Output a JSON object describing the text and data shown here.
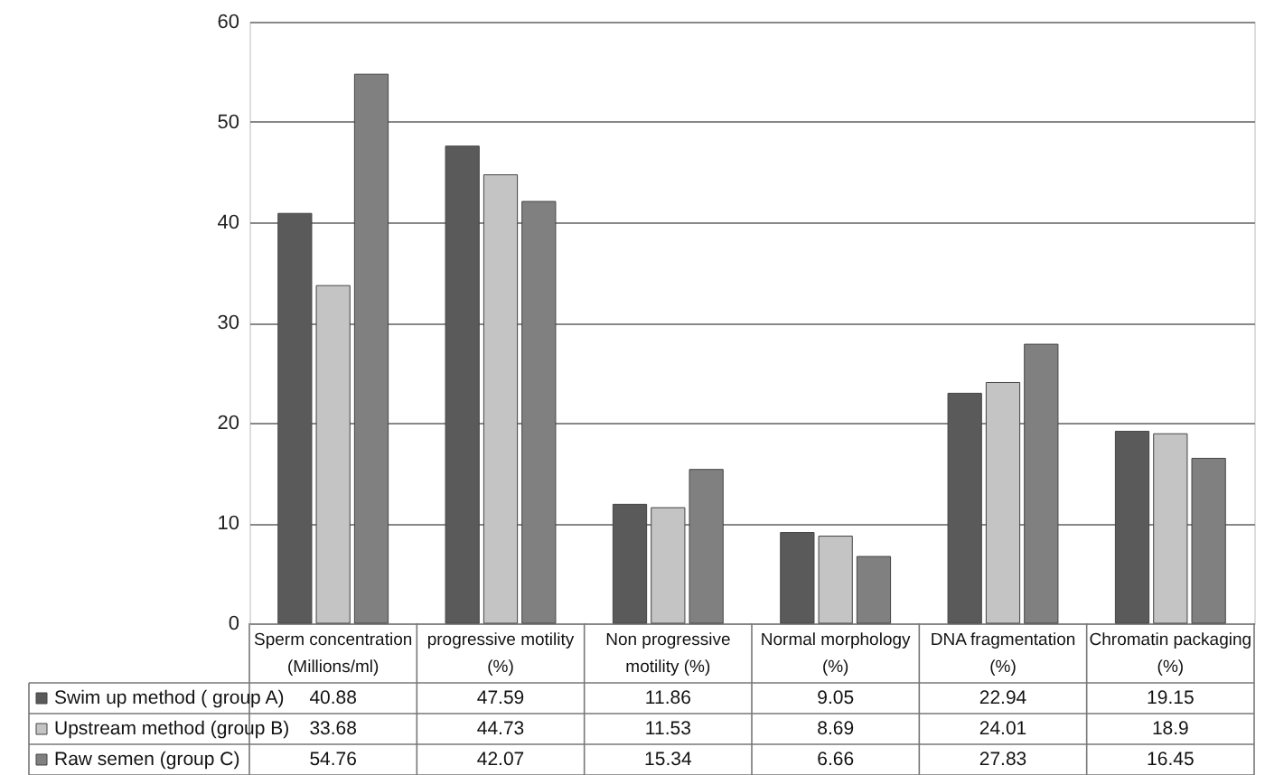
{
  "chart_data": {
    "type": "bar",
    "categories": [
      "Sperm concentration (Millions/ml)",
      "progressive motility (%)",
      "Non progressive motility (%)",
      "Normal morphology (%)",
      "DNA fragmentation (%)",
      "Chromatin packaging (%)"
    ],
    "series": [
      {
        "name": "Swim up method ( group A)",
        "color": "#5a5a5a",
        "values": [
          40.88,
          47.59,
          11.86,
          9.05,
          22.94,
          19.15
        ]
      },
      {
        "name": "Upstream method (group B)",
        "color": "#c4c4c4",
        "values": [
          33.68,
          44.73,
          11.53,
          8.69,
          24.01,
          18.9
        ]
      },
      {
        "name": "Raw semen (group C)",
        "color": "#808080",
        "values": [
          54.76,
          42.07,
          15.34,
          6.66,
          27.83,
          16.45
        ]
      }
    ],
    "ylim": [
      0,
      60
    ],
    "yticks": [
      0,
      10,
      20,
      30,
      40,
      50,
      60
    ],
    "grid": "y",
    "legend": "bottom",
    "data_labels": true
  }
}
